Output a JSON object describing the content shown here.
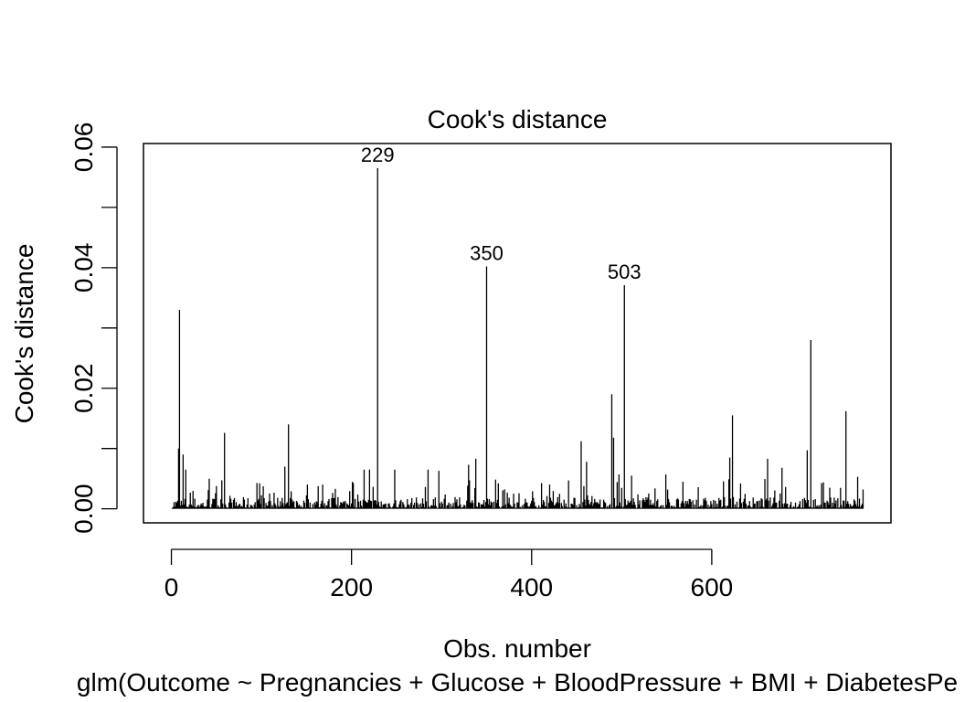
{
  "chart_data": {
    "type": "bar",
    "title": "Cook's distance",
    "xlabel": "Obs. number",
    "ylabel": "Cook's distance",
    "subtitle": "glm(Outcome ~ Pregnancies + Glucose + BloodPressure + BMI + DiabetesPe",
    "xlim": [
      -31,
      799
    ],
    "ylim": [
      -0.00233,
      0.0606
    ],
    "x_ticks": [
      0,
      200,
      400,
      600
    ],
    "x_tick_labels": [
      "0",
      "200",
      "400",
      "600"
    ],
    "y_ticks": [
      0,
      0.01,
      0.02,
      0.03,
      0.04,
      0.05,
      0.06
    ],
    "y_tick_labels": [
      "0.00",
      "",
      "0.02",
      "",
      "0.04",
      "",
      "0.06"
    ],
    "grid": false,
    "annotations": [
      {
        "x": 229,
        "y": 0.0565,
        "text": "229"
      },
      {
        "x": 350,
        "y": 0.0402,
        "text": "350"
      },
      {
        "x": 503,
        "y": 0.0371,
        "text": "503"
      }
    ],
    "notable_points": [
      {
        "x": 9,
        "y": 0.033
      },
      {
        "x": 8,
        "y": 0.01
      },
      {
        "x": 13,
        "y": 0.009
      },
      {
        "x": 16,
        "y": 0.0065
      },
      {
        "x": 59,
        "y": 0.0126
      },
      {
        "x": 130,
        "y": 0.014
      },
      {
        "x": 126,
        "y": 0.007
      },
      {
        "x": 214,
        "y": 0.0065
      },
      {
        "x": 220,
        "y": 0.0065
      },
      {
        "x": 229,
        "y": 0.0565
      },
      {
        "x": 248,
        "y": 0.0065
      },
      {
        "x": 285,
        "y": 0.0065
      },
      {
        "x": 297,
        "y": 0.0063
      },
      {
        "x": 330,
        "y": 0.0073
      },
      {
        "x": 338,
        "y": 0.0083
      },
      {
        "x": 350,
        "y": 0.0402
      },
      {
        "x": 455,
        "y": 0.0112
      },
      {
        "x": 461,
        "y": 0.0078
      },
      {
        "x": 489,
        "y": 0.019
      },
      {
        "x": 491,
        "y": 0.0118
      },
      {
        "x": 497,
        "y": 0.0057
      },
      {
        "x": 503,
        "y": 0.0371
      },
      {
        "x": 511,
        "y": 0.0055
      },
      {
        "x": 549,
        "y": 0.0057
      },
      {
        "x": 620,
        "y": 0.0085
      },
      {
        "x": 623,
        "y": 0.0155
      },
      {
        "x": 662,
        "y": 0.0083
      },
      {
        "x": 678,
        "y": 0.0068
      },
      {
        "x": 706,
        "y": 0.0097
      },
      {
        "x": 710,
        "y": 0.028
      },
      {
        "x": 731,
        "y": 0.0035
      },
      {
        "x": 749,
        "y": 0.0162
      },
      {
        "x": 762,
        "y": 0.0053
      },
      {
        "x": 768,
        "y": 0.0032
      }
    ],
    "n_obs": 768
  }
}
